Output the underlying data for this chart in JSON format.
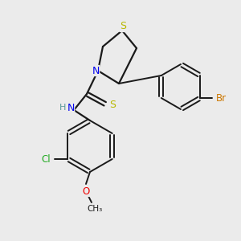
{
  "background_color": "#ebebeb",
  "bond_color": "#1a1a1a",
  "atom_colors": {
    "S": "#b8b800",
    "N": "#0000ee",
    "Br": "#cc7700",
    "Cl": "#22aa22",
    "O": "#ee0000",
    "C": "#1a1a1a",
    "H": "#5a9a9a"
  },
  "figsize": [
    3.0,
    3.0
  ],
  "dpi": 100
}
